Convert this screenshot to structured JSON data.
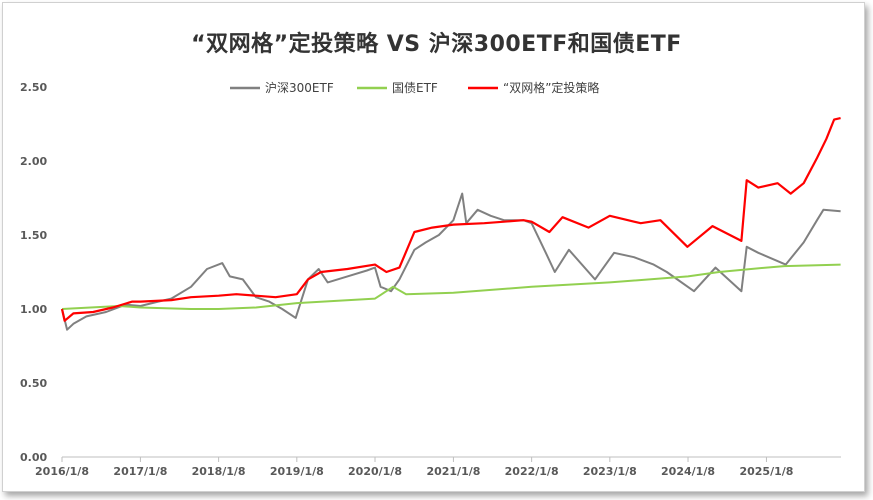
{
  "chart_data": {
    "type": "line",
    "title": "“双网格”定投策略 VS 沪深300ETF和国债ETF",
    "xlabel": "",
    "ylabel": "",
    "ylim": [
      0,
      2.5
    ],
    "yticks": [
      "0.00",
      "0.50",
      "1.00",
      "1.50",
      "2.00",
      "2.50"
    ],
    "xticks": [
      "2016/1/8",
      "2017/1/8",
      "2018/1/8",
      "2019/1/8",
      "2020/1/8",
      "2021/1/8",
      "2022/1/8",
      "2023/1/8",
      "2024/1/8",
      "2025/1/8"
    ],
    "legend_position": "top",
    "grid": false,
    "series": [
      {
        "name": "沪深300ETF",
        "color": "#808080",
        "points": [
          [
            "2016/1/8",
            1.0
          ],
          [
            "2016/2/1",
            0.86
          ],
          [
            "2016/3/1",
            0.9
          ],
          [
            "2016/5/1",
            0.95
          ],
          [
            "2016/8/1",
            0.98
          ],
          [
            "2016/11/1",
            1.03
          ],
          [
            "2017/1/8",
            1.02
          ],
          [
            "2017/4/1",
            1.05
          ],
          [
            "2017/6/1",
            1.07
          ],
          [
            "2017/9/1",
            1.15
          ],
          [
            "2017/11/15",
            1.27
          ],
          [
            "2018/1/25",
            1.31
          ],
          [
            "2018/3/1",
            1.22
          ],
          [
            "2018/5/1",
            1.2
          ],
          [
            "2018/7/1",
            1.08
          ],
          [
            "2018/9/1",
            1.05
          ],
          [
            "2018/11/1",
            1.0
          ],
          [
            "2019/1/3",
            0.94
          ],
          [
            "2019/3/1",
            1.2
          ],
          [
            "2019/4/20",
            1.27
          ],
          [
            "2019/6/1",
            1.18
          ],
          [
            "2019/9/1",
            1.22
          ],
          [
            "2019/12/1",
            1.26
          ],
          [
            "2020/1/8",
            1.28
          ],
          [
            "2020/2/3",
            1.15
          ],
          [
            "2020/3/23",
            1.12
          ],
          [
            "2020/5/1",
            1.2
          ],
          [
            "2020/7/10",
            1.4
          ],
          [
            "2020/9/1",
            1.45
          ],
          [
            "2020/11/1",
            1.5
          ],
          [
            "2021/1/8",
            1.6
          ],
          [
            "2021/2/18",
            1.78
          ],
          [
            "2021/3/9",
            1.58
          ],
          [
            "2021/5/1",
            1.67
          ],
          [
            "2021/7/1",
            1.63
          ],
          [
            "2021/9/1",
            1.6
          ],
          [
            "2021/12/1",
            1.6
          ],
          [
            "2022/1/8",
            1.58
          ],
          [
            "2022/3/15",
            1.38
          ],
          [
            "2022/4/26",
            1.25
          ],
          [
            "2022/7/1",
            1.4
          ],
          [
            "2022/10/31",
            1.2
          ],
          [
            "2023/1/28",
            1.38
          ],
          [
            "2023/5/1",
            1.35
          ],
          [
            "2023/8/1",
            1.3
          ],
          [
            "2023/10/1",
            1.25
          ],
          [
            "2024/2/5",
            1.12
          ],
          [
            "2024/5/15",
            1.28
          ],
          [
            "2024/9/13",
            1.12
          ],
          [
            "2024/10/8",
            1.42
          ],
          [
            "2024/12/1",
            1.38
          ],
          [
            "2025/4/8",
            1.3
          ],
          [
            "2025/7/1",
            1.45
          ],
          [
            "2025/9/1",
            1.6
          ],
          [
            "2025/10/1",
            1.67
          ],
          [
            "2025/12/20",
            1.66
          ]
        ]
      },
      {
        "name": "国债ETF",
        "color": "#92d050",
        "points": [
          [
            "2016/1/8",
            1.0
          ],
          [
            "2016/10/1",
            1.02
          ],
          [
            "2017/1/8",
            1.01
          ],
          [
            "2017/9/1",
            1.0
          ],
          [
            "2018/1/8",
            1.0
          ],
          [
            "2018/7/1",
            1.01
          ],
          [
            "2019/1/8",
            1.04
          ],
          [
            "2020/1/8",
            1.07
          ],
          [
            "2020/4/1",
            1.15
          ],
          [
            "2020/6/1",
            1.1
          ],
          [
            "2021/1/8",
            1.11
          ],
          [
            "2022/1/8",
            1.15
          ],
          [
            "2023/1/8",
            1.18
          ],
          [
            "2024/1/8",
            1.22
          ],
          [
            "2024/6/1",
            1.25
          ],
          [
            "2025/1/8",
            1.28
          ],
          [
            "2025/4/1",
            1.29
          ],
          [
            "2025/12/20",
            1.3
          ]
        ]
      },
      {
        "name": "“双网格”定投策略",
        "color": "#ff0000",
        "points": [
          [
            "2016/1/8",
            1.0
          ],
          [
            "2016/1/20",
            0.92
          ],
          [
            "2016/3/1",
            0.97
          ],
          [
            "2016/6/1",
            0.98
          ],
          [
            "2016/9/1",
            1.01
          ],
          [
            "2016/12/1",
            1.05
          ],
          [
            "2017/1/8",
            1.05
          ],
          [
            "2017/6/1",
            1.06
          ],
          [
            "2017/9/1",
            1.08
          ],
          [
            "2018/1/8",
            1.09
          ],
          [
            "2018/4/1",
            1.1
          ],
          [
            "2018/7/1",
            1.09
          ],
          [
            "2018/10/1",
            1.08
          ],
          [
            "2019/1/8",
            1.1
          ],
          [
            "2019/3/1",
            1.2
          ],
          [
            "2019/5/1",
            1.25
          ],
          [
            "2019/9/1",
            1.27
          ],
          [
            "2020/1/8",
            1.3
          ],
          [
            "2020/3/1",
            1.25
          ],
          [
            "2020/5/1",
            1.28
          ],
          [
            "2020/7/10",
            1.52
          ],
          [
            "2020/10/1",
            1.55
          ],
          [
            "2021/1/8",
            1.57
          ],
          [
            "2021/6/1",
            1.58
          ],
          [
            "2021/12/1",
            1.6
          ],
          [
            "2022/1/8",
            1.59
          ],
          [
            "2022/4/1",
            1.52
          ],
          [
            "2022/6/1",
            1.62
          ],
          [
            "2022/10/1",
            1.55
          ],
          [
            "2023/1/8",
            1.63
          ],
          [
            "2023/6/1",
            1.58
          ],
          [
            "2023/9/1",
            1.6
          ],
          [
            "2024/1/5",
            1.42
          ],
          [
            "2024/5/1",
            1.56
          ],
          [
            "2024/9/13",
            1.46
          ],
          [
            "2024/10/8",
            1.87
          ],
          [
            "2024/12/1",
            1.82
          ],
          [
            "2025/3/1",
            1.85
          ],
          [
            "2025/5/1",
            1.78
          ],
          [
            "2025/7/1",
            1.85
          ],
          [
            "2025/9/1",
            2.02
          ],
          [
            "2025/10/15",
            2.15
          ],
          [
            "2025/11/20",
            2.28
          ],
          [
            "2025/12/20",
            2.29
          ]
        ]
      }
    ]
  }
}
